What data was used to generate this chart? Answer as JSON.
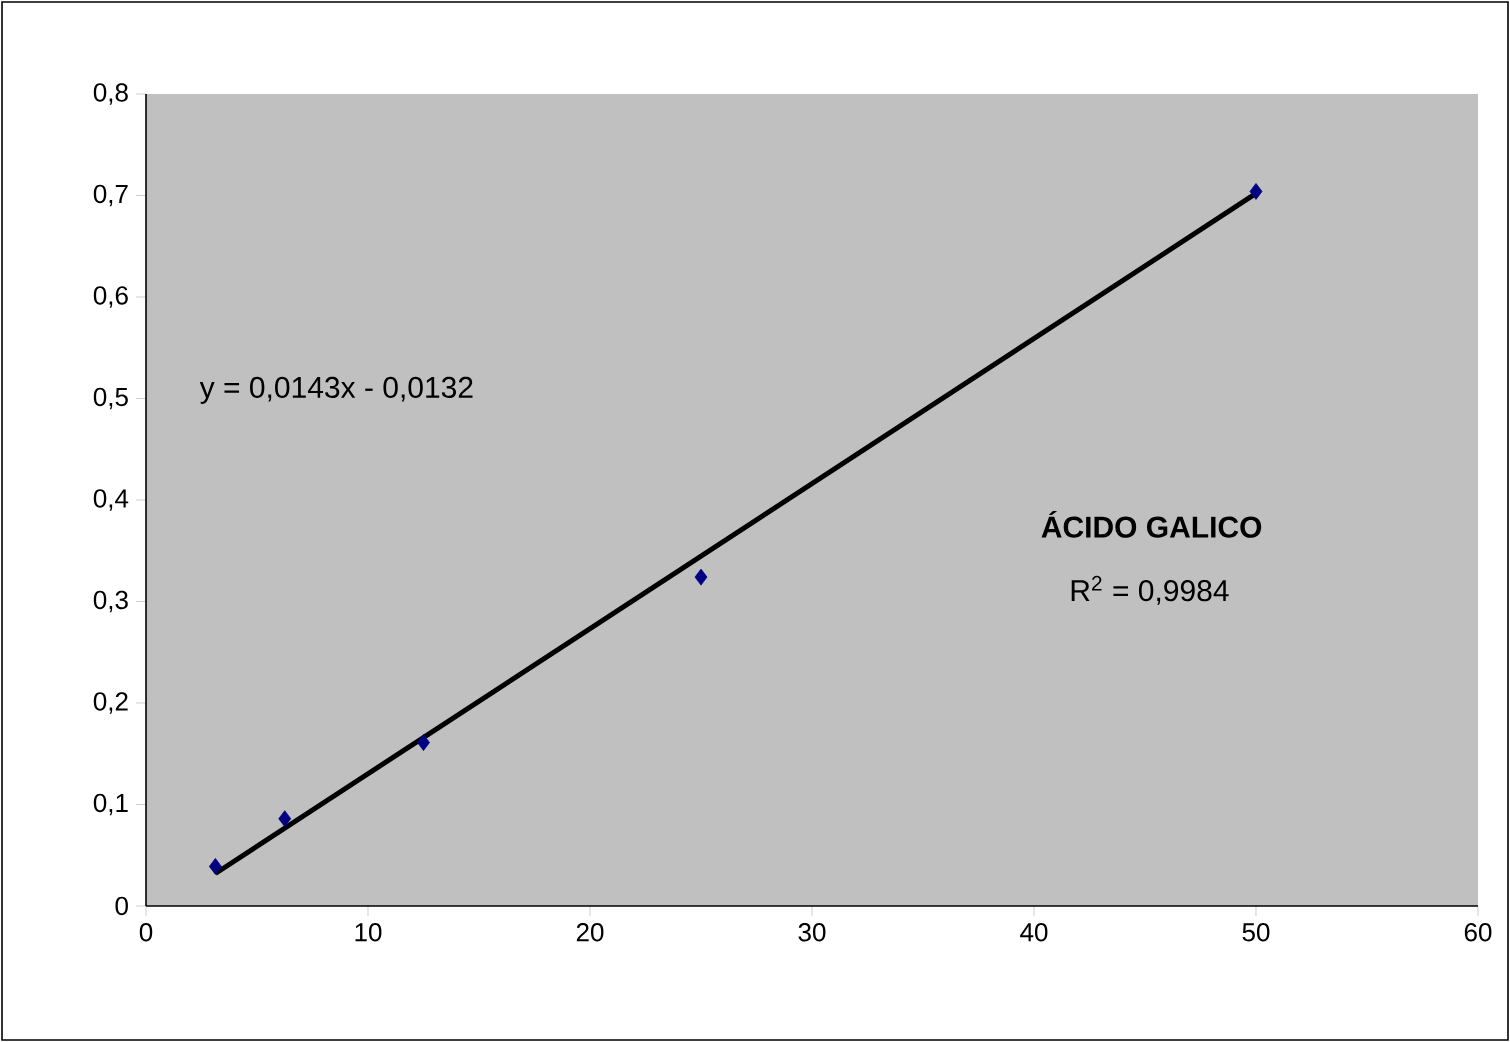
{
  "chart_data": {
    "type": "scatter",
    "title": "ÁCIDO GALICO",
    "x": [
      3.125,
      6.25,
      12.5,
      25,
      50
    ],
    "series": [
      {
        "color": "#000080",
        "marker": "diamond",
        "values": [
          0.039,
          0.086,
          0.161,
          0.324,
          0.704
        ]
      },
      {
        "type": "line",
        "color": "#000000",
        "marker": "none",
        "x": [
          3.125,
          50
        ],
        "values": [
          0.032,
          0.702
        ]
      }
    ],
    "annotations": [
      "y = 0,0143x - 0,0132",
      "R$^{2}$ = 0,9984"
    ],
    "xlim": [
      0,
      60
    ],
    "ylim": [
      0,
      0.8
    ],
    "xticks": [
      0,
      10,
      20,
      30,
      40,
      50,
      60
    ],
    "yticks": [
      {
        "value": 0,
        "label": "0"
      },
      {
        "value": 0.1,
        "label": "0,1"
      },
      {
        "value": 0.2,
        "label": "0,2"
      },
      {
        "value": 0.3,
        "label": "0,3"
      },
      {
        "value": 0.4,
        "label": "0,4"
      },
      {
        "value": 0.5,
        "label": "0,5"
      },
      {
        "value": 0.6,
        "label": "0,6"
      },
      {
        "value": 0.7,
        "label": "0,7"
      },
      {
        "value": 0.8,
        "label": "0,8"
      }
    ],
    "grid": false
  }
}
